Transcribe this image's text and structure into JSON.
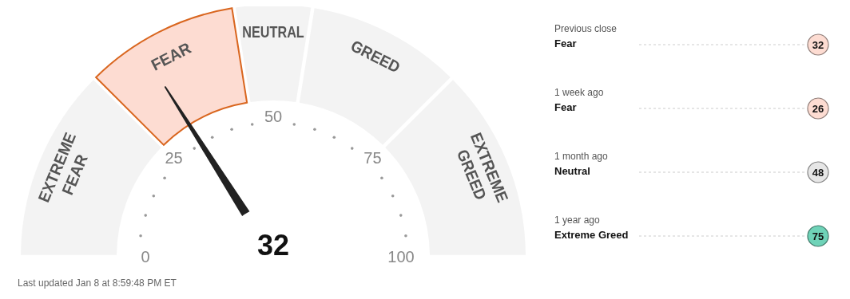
{
  "chart_data": [
    {
      "type": "donut",
      "categories": [
        "EXTREME FEAR",
        "FEAR",
        "NEUTRAL",
        "GREED",
        "EXTREME GREED"
      ],
      "values": [
        25,
        20,
        10,
        20,
        25
      ],
      "colors": [
        "#f3f3f3",
        "#fddcd2",
        "#f3f3f3",
        "#f3f3f3",
        "#f3f3f3"
      ],
      "needle": "FEAR",
      "annotations": [
        "32",
        "0",
        "25",
        "50",
        "75",
        "100",
        "Last updated Jan 8 at 8:59:48 PM ET"
      ]
    },
    {
      "type": "other",
      "categories": [
        "Previous close",
        "1 week ago",
        "1 month ago",
        "1 year ago"
      ],
      "colors": [
        "#fddcd2",
        "#fddcd2",
        "#e6e6e6",
        "#6fd3b8"
      ],
      "annotations": [
        "Fear",
        "32",
        "Fear",
        "26",
        "Neutral",
        "48",
        "Extreme Greed",
        "75"
      ]
    }
  ]
}
